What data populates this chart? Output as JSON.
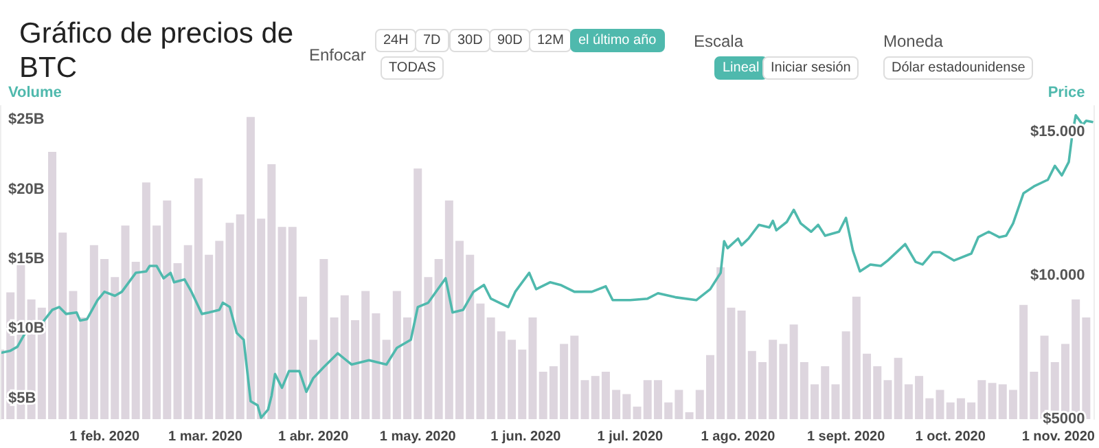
{
  "chart_data": {
    "type": "bar",
    "title": "Gráfico de precios de BTC",
    "annotations": [
      "Enfocar",
      "24H",
      "7D",
      "30D",
      "90D",
      "12M",
      "el último año",
      "TODAS",
      "Escala",
      "Lineal",
      "Iniciar sesión",
      "Moneda",
      "Dólar estadounidense"
    ],
    "ylabel": "Volume",
    "y2label": "Price",
    "xlim": [
      "2020-01-02",
      "2020-11-11"
    ],
    "xticks": [
      {
        "value": "2020-02-01",
        "label": "1 feb. 2020"
      },
      {
        "value": "2020-03-01",
        "label": "1 mar. 2020"
      },
      {
        "value": "2020-04-01",
        "label": "1 abr. 2020"
      },
      {
        "value": "2020-05-01",
        "label": "1 may. 2020"
      },
      {
        "value": "2020-06-01",
        "label": "1 jun. 2020"
      },
      {
        "value": "2020-07-01",
        "label": "1 jul. 2020"
      },
      {
        "value": "2020-08-01",
        "label": "1 ago. 2020"
      },
      {
        "value": "2020-09-01",
        "label": "1 sept. 2020"
      },
      {
        "value": "2020-10-01",
        "label": "1 oct. 2020"
      },
      {
        "value": "2020-11-01",
        "label": "1 nov. 2020"
      }
    ],
    "ylim": [
      3.5,
      26
    ],
    "yticks": [
      {
        "value": 5,
        "label": "$5B"
      },
      {
        "value": 10,
        "label": "$10B"
      },
      {
        "value": 15,
        "label": "$15B"
      },
      {
        "value": 20,
        "label": "$20B"
      },
      {
        "value": 25,
        "label": "$25B"
      }
    ],
    "y2lim": [
      5000,
      15900
    ],
    "y2ticks": [
      {
        "value": 5000,
        "label": "$5000"
      },
      {
        "value": 10000,
        "label": "$10.000"
      },
      {
        "value": 15000,
        "label": "$15.000"
      }
    ],
    "series": [
      {
        "color": "#ddd5de",
        "x": [
          "2020-01-02",
          "2020-01-05",
          "2020-01-08",
          "2020-01-11",
          "2020-01-14",
          "2020-01-17",
          "2020-01-20",
          "2020-01-23",
          "2020-01-26",
          "2020-01-29",
          "2020-02-01",
          "2020-02-04",
          "2020-02-07",
          "2020-02-10",
          "2020-02-13",
          "2020-02-16",
          "2020-02-19",
          "2020-02-22",
          "2020-02-25",
          "2020-02-28",
          "2020-03-02",
          "2020-03-05",
          "2020-03-08",
          "2020-03-11",
          "2020-03-14",
          "2020-03-17",
          "2020-03-20",
          "2020-03-23",
          "2020-03-26",
          "2020-03-29",
          "2020-04-01",
          "2020-04-04",
          "2020-04-07",
          "2020-04-10",
          "2020-04-13",
          "2020-04-16",
          "2020-04-19",
          "2020-04-22",
          "2020-04-25",
          "2020-04-28",
          "2020-05-01",
          "2020-05-04",
          "2020-05-07",
          "2020-05-10",
          "2020-05-13",
          "2020-05-16",
          "2020-05-19",
          "2020-05-22",
          "2020-05-25",
          "2020-05-28",
          "2020-05-31",
          "2020-06-03",
          "2020-06-06",
          "2020-06-09",
          "2020-06-12",
          "2020-06-15",
          "2020-06-18",
          "2020-06-21",
          "2020-06-24",
          "2020-06-27",
          "2020-06-30",
          "2020-07-03",
          "2020-07-06",
          "2020-07-09",
          "2020-07-12",
          "2020-07-15",
          "2020-07-18",
          "2020-07-21",
          "2020-07-24",
          "2020-07-27",
          "2020-07-30",
          "2020-08-02",
          "2020-08-05",
          "2020-08-08",
          "2020-08-11",
          "2020-08-14",
          "2020-08-17",
          "2020-08-20",
          "2020-08-23",
          "2020-08-26",
          "2020-08-29",
          "2020-09-01",
          "2020-09-04",
          "2020-09-07",
          "2020-09-10",
          "2020-09-13",
          "2020-09-16",
          "2020-09-19",
          "2020-09-22",
          "2020-09-25",
          "2020-09-28",
          "2020-10-01",
          "2020-10-04",
          "2020-10-07",
          "2020-10-10",
          "2020-10-13",
          "2020-10-16",
          "2020-10-19",
          "2020-10-22",
          "2020-10-25",
          "2020-10-28",
          "2020-10-31",
          "2020-11-03",
          "2020-11-06",
          "2020-11-09"
        ],
        "values": [
          8.5,
          12.6,
          14.8,
          12.1,
          11.5,
          22.7,
          16.9,
          12.7,
          10.8,
          16.0,
          15.0,
          13.7,
          17.4,
          14.8,
          20.5,
          17.4,
          19.2,
          14.7,
          16.0,
          20.8,
          15.3,
          16.3,
          17.6,
          18.2,
          25.2,
          17.9,
          21.8,
          17.3,
          17.3,
          12.3,
          9.2,
          15.0,
          10.8,
          12.4,
          10.6,
          12.7,
          11.1,
          9.2,
          12.7,
          10.8,
          21.5,
          13.7,
          15.0,
          19.2,
          16.3,
          15.3,
          11.8,
          10.8,
          9.8,
          9.2,
          8.5,
          10.8,
          6.9,
          7.3,
          8.9,
          9.5,
          6.3,
          6.6,
          6.9,
          5.6,
          5.3,
          4.4,
          6.3,
          6.3,
          4.7,
          5.6,
          4.0,
          5.6,
          8.1,
          14.4,
          11.5,
          11.3,
          8.4,
          7.6,
          9.2,
          8.9,
          10.3,
          7.6,
          6.0,
          7.3,
          6.0,
          9.8,
          12.3,
          8.2,
          7.3,
          6.3,
          7.9,
          6.0,
          6.6,
          5.0,
          5.6,
          4.7,
          5.0,
          4.7,
          6.3,
          6.1,
          6.0,
          5.6,
          11.7,
          6.9,
          9.5,
          7.6,
          8.9,
          12.1,
          10.8
        ]
      },
      {
        "type": "line",
        "axis": "y2",
        "color": "#4fb9ad",
        "x": [
          "2020-01-02",
          "2020-01-05",
          "2020-01-07",
          "2020-01-09",
          "2020-01-11",
          "2020-01-14",
          "2020-01-17",
          "2020-01-19",
          "2020-01-21",
          "2020-01-24",
          "2020-01-25",
          "2020-01-27",
          "2020-01-30",
          "2020-02-01",
          "2020-02-04",
          "2020-02-06",
          "2020-02-08",
          "2020-02-10",
          "2020-02-13",
          "2020-02-14",
          "2020-02-16",
          "2020-02-18",
          "2020-02-20",
          "2020-02-21",
          "2020-02-24",
          "2020-02-26",
          "2020-02-29",
          "2020-03-02",
          "2020-03-05",
          "2020-03-06",
          "2020-03-08",
          "2020-03-10",
          "2020-03-12",
          "2020-03-14",
          "2020-03-16",
          "2020-03-17",
          "2020-03-19",
          "2020-03-20",
          "2020-03-21",
          "2020-03-23",
          "2020-03-25",
          "2020-03-28",
          "2020-03-30",
          "2020-04-01",
          "2020-04-04",
          "2020-04-08",
          "2020-04-12",
          "2020-04-17",
          "2020-04-22",
          "2020-04-25",
          "2020-04-29",
          "2020-05-01",
          "2020-05-04",
          "2020-05-09",
          "2020-05-11",
          "2020-05-14",
          "2020-05-17",
          "2020-05-20",
          "2020-05-22",
          "2020-05-27",
          "2020-05-29",
          "2020-06-02",
          "2020-06-04",
          "2020-06-08",
          "2020-06-11",
          "2020-06-15",
          "2020-06-20",
          "2020-06-24",
          "2020-06-26",
          "2020-07-01",
          "2020-07-06",
          "2020-07-09",
          "2020-07-14",
          "2020-07-20",
          "2020-07-24",
          "2020-07-27",
          "2020-07-28",
          "2020-07-29",
          "2020-08-01",
          "2020-08-02",
          "2020-08-04",
          "2020-08-07",
          "2020-08-10",
          "2020-08-11",
          "2020-08-12",
          "2020-08-15",
          "2020-08-17",
          "2020-08-19",
          "2020-08-22",
          "2020-08-24",
          "2020-08-26",
          "2020-08-30",
          "2020-09-01",
          "2020-09-03",
          "2020-09-05",
          "2020-09-08",
          "2020-09-11",
          "2020-09-13",
          "2020-09-16",
          "2020-09-18",
          "2020-09-21",
          "2020-09-23",
          "2020-09-26",
          "2020-09-28",
          "2020-10-02",
          "2020-10-07",
          "2020-10-09",
          "2020-10-12",
          "2020-10-15",
          "2020-10-17",
          "2020-10-19",
          "2020-10-22",
          "2020-10-25",
          "2020-10-29",
          "2020-10-31",
          "2020-11-02",
          "2020-11-04",
          "2020-11-05",
          "2020-11-06",
          "2020-11-08",
          "2020-11-09",
          "2020-11-11"
        ],
        "values": [
          7300,
          7380,
          7520,
          7950,
          8100,
          8330,
          8800,
          8900,
          8660,
          8710,
          8430,
          8480,
          9140,
          9430,
          9290,
          9430,
          9760,
          10090,
          10140,
          10330,
          10330,
          9900,
          10090,
          9760,
          9860,
          9430,
          8660,
          8710,
          8800,
          9050,
          8900,
          8000,
          7760,
          5620,
          5480,
          5050,
          5330,
          5810,
          6570,
          6090,
          6670,
          6670,
          5950,
          6430,
          6810,
          7290,
          6900,
          7050,
          6900,
          7480,
          7760,
          8900,
          9050,
          9900,
          8710,
          8800,
          9430,
          9670,
          9190,
          8900,
          9430,
          10090,
          9520,
          9760,
          9670,
          9430,
          9430,
          9620,
          9140,
          9140,
          9190,
          9380,
          9240,
          9140,
          9520,
          10090,
          11190,
          10950,
          11280,
          11050,
          11280,
          11760,
          11670,
          11900,
          11570,
          11860,
          12280,
          11810,
          11520,
          11760,
          11380,
          11520,
          12000,
          10860,
          10140,
          10380,
          10330,
          10520,
          10860,
          11090,
          10470,
          10380,
          10810,
          10810,
          10520,
          10760,
          11330,
          11520,
          11330,
          11380,
          11810,
          12860,
          13100,
          13330,
          13810,
          13480,
          13950,
          14900,
          15570,
          15240,
          15380,
          15330
        ]
      }
    ]
  }
}
